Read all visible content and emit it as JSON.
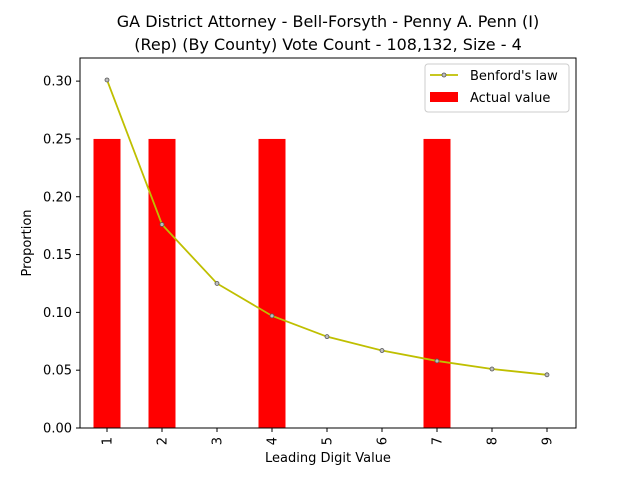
{
  "chart_data": {
    "type": "bar",
    "title_line1": "GA District Attorney - Bell-Forsyth - Penny A. Penn (I)",
    "title_line2": "(Rep) (By County) Vote Count - 108,132, Size - 4",
    "xlabel": "Leading Digit Value",
    "ylabel": "Proportion",
    "categories": [
      "1",
      "2",
      "3",
      "4",
      "5",
      "6",
      "7",
      "8",
      "9"
    ],
    "ylim": [
      0,
      0.32
    ],
    "yticks": [
      "0.00",
      "0.05",
      "0.10",
      "0.15",
      "0.20",
      "0.25",
      "0.30"
    ],
    "grid": false,
    "legend_position": "top-right",
    "series": [
      {
        "name": "Benford's law",
        "type": "line",
        "color": "#bfbf00",
        "values": [
          0.301,
          0.176,
          0.125,
          0.097,
          0.079,
          0.067,
          0.058,
          0.051,
          0.046
        ]
      },
      {
        "name": "Actual value",
        "type": "bar",
        "color": "#ff0000",
        "values": [
          0.25,
          0.25,
          0,
          0.25,
          0,
          0,
          0.25,
          0,
          0
        ]
      }
    ]
  }
}
